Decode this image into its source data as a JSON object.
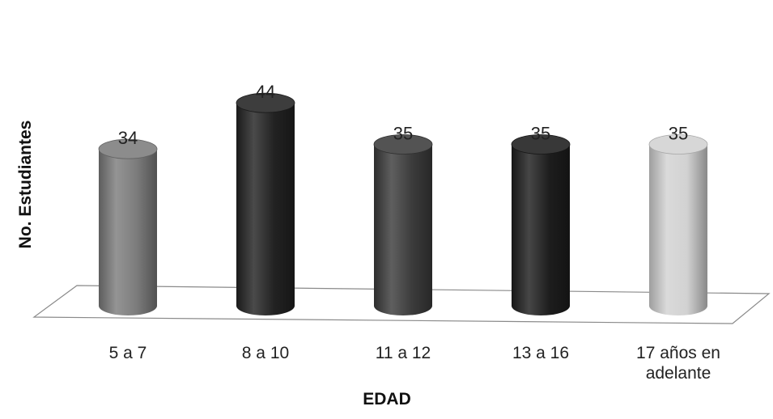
{
  "chart_data": {
    "type": "bar",
    "style": "3d-cylinder",
    "categories": [
      [
        "5 a 7"
      ],
      [
        "8 a 10"
      ],
      [
        "11 a 12"
      ],
      [
        "13 a 16"
      ],
      [
        "17 años en",
        "adelante"
      ]
    ],
    "values": [
      34,
      44,
      35,
      35,
      35
    ],
    "data_labels": [
      "34",
      "44",
      "35",
      "35",
      "35"
    ],
    "bar_colors": [
      "#7c7c7c",
      "#222222",
      "#3c3c3c",
      "#1d1d1d",
      "#d2d2d2"
    ],
    "title": "",
    "xlabel": "EDAD",
    "ylabel": "No. Estudiantes",
    "ylim": [
      0,
      50
    ],
    "grid": false,
    "legend": "none"
  }
}
